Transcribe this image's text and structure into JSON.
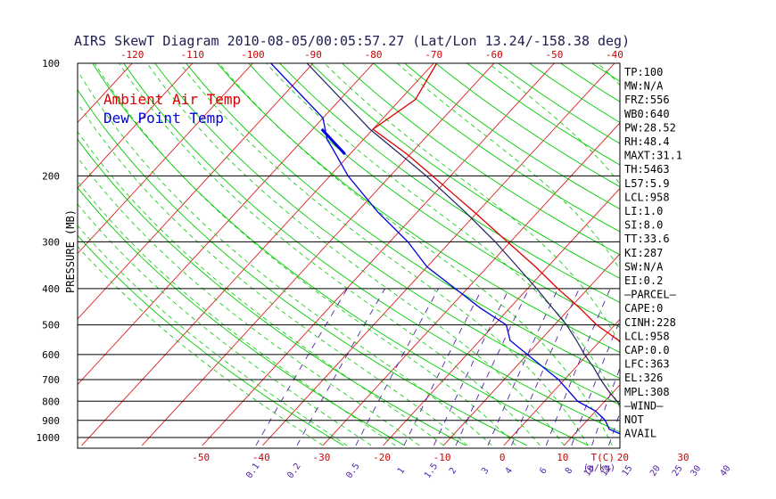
{
  "chart_data": {
    "type": "line",
    "title": "AIRS SkewT Diagram 2010-08-05/00:05:57.27 (Lat/Lon 13.24/-158.38 deg)",
    "ylabel": "PRESSURE (MB)",
    "y_scale": "log",
    "ylim": [
      1050,
      100
    ],
    "xlim_bottom": [
      -55,
      40
    ],
    "pressure_ticks": [
      100,
      200,
      300,
      400,
      500,
      600,
      700,
      800,
      900,
      1000
    ],
    "top_temp_ticks": [
      -120,
      -110,
      -100,
      -90,
      -80,
      -70,
      -60,
      -50,
      -40
    ],
    "bottom_temp_ticks": [
      -50,
      -40,
      -30,
      -20,
      -10,
      0,
      10,
      20,
      30
    ],
    "bottom_temp_unit": "T(C)",
    "mixing_ratio_ticks": [
      "0.1",
      "0.2",
      "0.5",
      "1",
      "1.5",
      "2",
      "3",
      "4",
      "6",
      "8",
      "10",
      "12",
      "15",
      "20",
      "25",
      "30",
      "40"
    ],
    "mixing_ratio_unit": "(g/kg)",
    "legend": [
      "Ambient Air Temp",
      "Dew Point Temp"
    ],
    "legend_placement": "top-left",
    "colors": {
      "ambient": "#dd0000",
      "dewpoint": "#0000dd",
      "parcel": "#202060",
      "isotherm": "#dd2020",
      "dry_adiabat": "#00cc00",
      "moist_adiabat": "#00cc00",
      "mixing_ratio": "#5522aa",
      "isobar": "#000000",
      "title": "#202050"
    },
    "series": [
      {
        "name": "Ambient Air Temp",
        "points": [
          [
            1000,
            24.5
          ],
          [
            975,
            21.5
          ],
          [
            950,
            21.0
          ],
          [
            900,
            20.8
          ],
          [
            850,
            19.5
          ],
          [
            800,
            18.0
          ],
          [
            750,
            16.0
          ],
          [
            700,
            13.0
          ],
          [
            650,
            10.0
          ],
          [
            600,
            7.0
          ],
          [
            550,
            3.0
          ],
          [
            500,
            -3.0
          ],
          [
            450,
            -8.5
          ],
          [
            400,
            -15.0
          ],
          [
            350,
            -22.0
          ],
          [
            300,
            -30.5
          ],
          [
            250,
            -40.5
          ],
          [
            200,
            -53.0
          ],
          [
            175,
            -60.5
          ],
          [
            150,
            -70.0
          ],
          [
            125,
            -67.5
          ],
          [
            100,
            -69.5
          ]
        ]
      },
      {
        "name": "Dew Point Temp",
        "points": [
          [
            1000,
            19.5
          ],
          [
            950,
            15.0
          ],
          [
            900,
            13.0
          ],
          [
            850,
            10.0
          ],
          [
            800,
            5.5
          ],
          [
            700,
            -1.0
          ],
          [
            600,
            -10.0
          ],
          [
            550,
            -15.0
          ],
          [
            500,
            -18.0
          ],
          [
            450,
            -25.0
          ],
          [
            400,
            -32.0
          ],
          [
            350,
            -40.0
          ],
          [
            300,
            -47.0
          ],
          [
            250,
            -56.5
          ],
          [
            200,
            -67.0
          ],
          [
            170,
            -73.5
          ],
          [
            160,
            -76.0
          ],
          [
            140,
            -80.0
          ],
          [
            100,
            -97.0
          ]
        ]
      },
      {
        "points": [
          [
            1000,
            24.5
          ],
          [
            950,
            20.5
          ],
          [
            900,
            17.5
          ],
          [
            850,
            15.0
          ],
          [
            800,
            12.0
          ],
          [
            750,
            9.0
          ],
          [
            700,
            6.0
          ],
          [
            650,
            3.0
          ],
          [
            600,
            -0.5
          ],
          [
            550,
            -4.0
          ],
          [
            500,
            -8.0
          ],
          [
            450,
            -13.0
          ],
          [
            400,
            -18.5
          ],
          [
            350,
            -25.0
          ],
          [
            300,
            -32.5
          ],
          [
            250,
            -42.0
          ],
          [
            200,
            -54.0
          ],
          [
            150,
            -70.5
          ],
          [
            100,
            -91.0
          ]
        ]
      }
    ],
    "indices": [
      "TP:100",
      "MW:N/A",
      "FRZ:556",
      "WB0:640",
      "PW:28.52",
      "RH:48.4",
      "MAXT:31.1",
      "TH:5463",
      "L57:5.9",
      "LCL:958",
      "LI:1.0",
      "SI:8.0",
      "TT:33.6",
      "KI:287",
      "SW:N/A",
      "EI:0.2",
      "—PARCEL—",
      "CAPE:0",
      "CINH:228",
      "LCL:958",
      "CAP:0.0",
      "LFC:363",
      "EL:326",
      "MPL:308",
      "—WIND—",
      "NOT",
      "AVAIL"
    ]
  }
}
